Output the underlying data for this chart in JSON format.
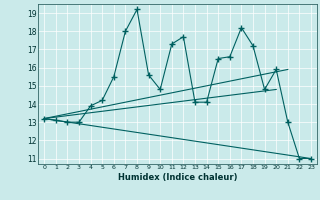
{
  "xlabel": "Humidex (Indice chaleur)",
  "bg_color": "#caeaea",
  "line_color": "#006060",
  "xlim": [
    -0.5,
    23.5
  ],
  "ylim": [
    10.7,
    19.5
  ],
  "xticks": [
    0,
    1,
    2,
    3,
    4,
    5,
    6,
    7,
    8,
    9,
    10,
    11,
    12,
    13,
    14,
    15,
    16,
    17,
    18,
    19,
    20,
    21,
    22,
    23
  ],
  "yticks": [
    11,
    12,
    13,
    14,
    15,
    16,
    17,
    18,
    19
  ],
  "main_line": {
    "x": [
      0,
      1,
      2,
      3,
      4,
      5,
      6,
      7,
      8,
      9,
      10,
      11,
      12,
      13,
      14,
      15,
      16,
      17,
      18,
      19,
      20,
      21,
      22,
      23
    ],
    "y": [
      13.2,
      13.1,
      13.0,
      13.0,
      13.9,
      14.2,
      15.5,
      18.0,
      19.2,
      15.6,
      14.8,
      17.3,
      17.7,
      14.1,
      14.1,
      16.5,
      16.6,
      18.2,
      17.2,
      14.8,
      15.9,
      13.0,
      11.0,
      11.0
    ]
  },
  "straight_lines": [
    {
      "x": [
        0,
        21
      ],
      "y": [
        13.2,
        15.9
      ]
    },
    {
      "x": [
        0,
        20
      ],
      "y": [
        13.2,
        14.8
      ]
    },
    {
      "x": [
        0,
        23
      ],
      "y": [
        13.2,
        11.0
      ]
    }
  ]
}
